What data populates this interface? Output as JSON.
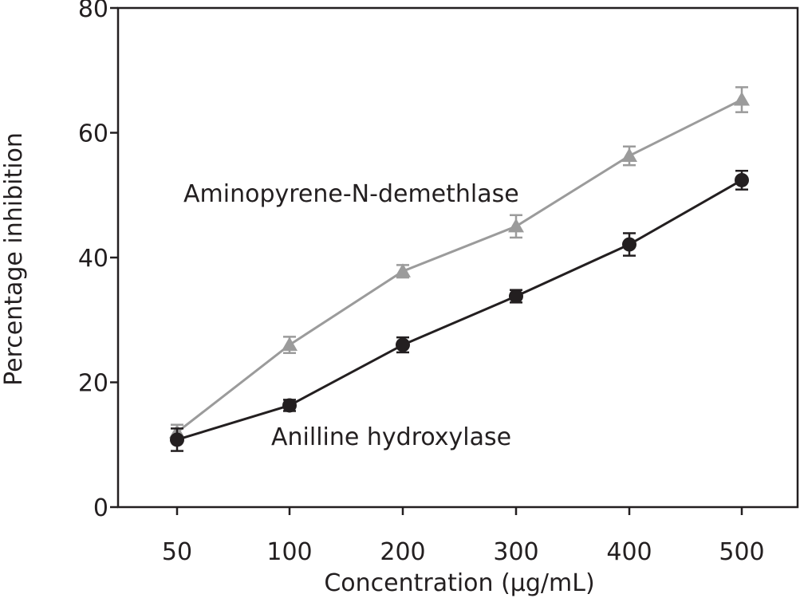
{
  "chart_data": {
    "type": "line",
    "title": "",
    "xlabel": "Concentration (μg/mL)",
    "ylabel": "Percentage inhibition",
    "categories": [
      "50",
      "100",
      "200",
      "300",
      "400",
      "500"
    ],
    "ylim": [
      0,
      80
    ],
    "yticks": [
      "0",
      "20",
      "40",
      "60",
      "80"
    ],
    "grid": false,
    "series": [
      {
        "name": "Aminopyrene-N-demethlase",
        "marker": "triangle",
        "color": "#9b9b9b",
        "values": [
          12.0,
          26.0,
          37.8,
          45.0,
          56.3,
          65.3
        ],
        "errors": [
          1.2,
          1.3,
          1.0,
          1.8,
          1.5,
          2.0
        ]
      },
      {
        "name": "Anilline hydroxylase",
        "marker": "circle",
        "color": "#231f20",
        "values": [
          10.8,
          16.3,
          26.0,
          33.8,
          42.1,
          52.4
        ],
        "errors": [
          1.8,
          0.9,
          1.2,
          1.0,
          1.8,
          1.5
        ]
      }
    ],
    "annotations": [
      "Aminopyrene-N-demethlase",
      "Anilline hydroxylase"
    ]
  }
}
